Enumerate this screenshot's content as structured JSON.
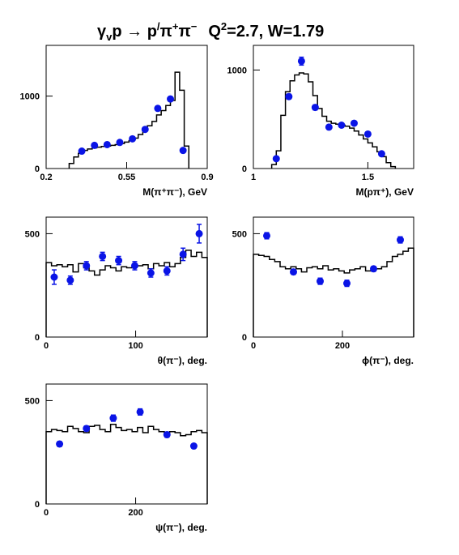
{
  "title_parts": {
    "gamma": "γ",
    "v_sub": "v",
    "reaction": "p → p",
    "prime": "/",
    "pi1": "π",
    "plus": "+",
    "pi2": "π",
    "minus": "−",
    "q": "Q",
    "q_exp": "2",
    "rest": "=2.7, W=1.79"
  },
  "colors": {
    "data_points": "#0a14e6",
    "histogram": "#000000"
  },
  "chart_data": [
    {
      "type": "scatter",
      "xlabel": "M(π⁺π⁻), GeV",
      "xlim": [
        0.2,
        0.9
      ],
      "ylim": [
        0,
        1700
      ],
      "xticks": [
        "0.2",
        "0.55",
        "0.9"
      ],
      "xtick_values": [
        0.2,
        0.55,
        0.9
      ],
      "yticks": [
        "0",
        "1000"
      ],
      "ytick_values": [
        0,
        1000
      ],
      "points": [
        {
          "x": 0.355,
          "y": 240,
          "err": 20
        },
        {
          "x": 0.41,
          "y": 320,
          "err": 20
        },
        {
          "x": 0.465,
          "y": 330,
          "err": 20
        },
        {
          "x": 0.52,
          "y": 360,
          "err": 20
        },
        {
          "x": 0.575,
          "y": 410,
          "err": 20
        },
        {
          "x": 0.63,
          "y": 540,
          "err": 25
        },
        {
          "x": 0.685,
          "y": 830,
          "err": 30
        },
        {
          "x": 0.74,
          "y": 960,
          "err": 30
        },
        {
          "x": 0.795,
          "y": 250,
          "err": 20
        }
      ],
      "histogram": {
        "edges": [
          0.3,
          0.32,
          0.34,
          0.36,
          0.38,
          0.4,
          0.42,
          0.44,
          0.46,
          0.48,
          0.5,
          0.52,
          0.54,
          0.56,
          0.58,
          0.6,
          0.62,
          0.64,
          0.66,
          0.68,
          0.7,
          0.72,
          0.74,
          0.76,
          0.78,
          0.8,
          0.82
        ],
        "values": [
          70,
          160,
          210,
          250,
          270,
          285,
          295,
          305,
          310,
          320,
          330,
          345,
          365,
          385,
          420,
          470,
          530,
          590,
          650,
          740,
          800,
          870,
          940,
          1330,
          1080,
          310
        ]
      }
    },
    {
      "type": "scatter",
      "xlabel": "M(pπ⁺), GeV",
      "xlim": [
        1.0,
        1.7
      ],
      "ylim": [
        0,
        1250
      ],
      "xticks": [
        "1",
        "1.5"
      ],
      "xtick_values": [
        1.0,
        1.5
      ],
      "yticks": [
        "0",
        "1000"
      ],
      "ytick_values": [
        0,
        1000
      ],
      "points": [
        {
          "x": 1.1,
          "y": 100,
          "err": 15
        },
        {
          "x": 1.155,
          "y": 730,
          "err": 25
        },
        {
          "x": 1.21,
          "y": 1090,
          "err": 40
        },
        {
          "x": 1.27,
          "y": 620,
          "err": 25
        },
        {
          "x": 1.33,
          "y": 420,
          "err": 20
        },
        {
          "x": 1.385,
          "y": 440,
          "err": 20
        },
        {
          "x": 1.44,
          "y": 460,
          "err": 20
        },
        {
          "x": 1.5,
          "y": 350,
          "err": 20
        },
        {
          "x": 1.56,
          "y": 150,
          "err": 15
        }
      ],
      "histogram": {
        "edges": [
          1.08,
          1.1,
          1.12,
          1.14,
          1.16,
          1.18,
          1.2,
          1.22,
          1.24,
          1.26,
          1.28,
          1.3,
          1.32,
          1.34,
          1.36,
          1.38,
          1.4,
          1.42,
          1.44,
          1.46,
          1.48,
          1.5,
          1.52,
          1.54,
          1.56,
          1.58,
          1.6,
          1.62
        ],
        "values": [
          40,
          180,
          540,
          780,
          890,
          950,
          970,
          960,
          880,
          740,
          610,
          530,
          480,
          460,
          450,
          440,
          430,
          410,
          380,
          340,
          300,
          260,
          220,
          170,
          120,
          60,
          20
        ]
      }
    },
    {
      "type": "scatter",
      "xlabel": "θ(π⁻), deg.",
      "xlim": [
        0,
        180
      ],
      "ylim": [
        0,
        580
      ],
      "xticks": [
        "0",
        "100"
      ],
      "xtick_values": [
        0,
        100
      ],
      "yticks": [
        "0",
        "500"
      ],
      "ytick_values": [
        0,
        500
      ],
      "points": [
        {
          "x": 9,
          "y": 290,
          "err": 35
        },
        {
          "x": 27,
          "y": 275,
          "err": 20
        },
        {
          "x": 45,
          "y": 345,
          "err": 20
        },
        {
          "x": 63,
          "y": 390,
          "err": 20
        },
        {
          "x": 81,
          "y": 370,
          "err": 20
        },
        {
          "x": 99,
          "y": 345,
          "err": 20
        },
        {
          "x": 117,
          "y": 310,
          "err": 20
        },
        {
          "x": 135,
          "y": 320,
          "err": 20
        },
        {
          "x": 153,
          "y": 400,
          "err": 30
        },
        {
          "x": 171,
          "y": 500,
          "err": 45
        }
      ],
      "histogram": {
        "edges": [
          0,
          6,
          12,
          18,
          24,
          30,
          36,
          42,
          48,
          54,
          60,
          66,
          72,
          78,
          84,
          90,
          96,
          102,
          108,
          114,
          120,
          126,
          132,
          138,
          144,
          150,
          156,
          162,
          168,
          174,
          180
        ],
        "values": [
          360,
          345,
          350,
          340,
          350,
          315,
          355,
          335,
          320,
          300,
          325,
          345,
          335,
          320,
          340,
          335,
          340,
          345,
          350,
          330,
          355,
          345,
          360,
          340,
          355,
          385,
          420,
          390,
          410,
          385
        ]
      }
    },
    {
      "type": "scatter",
      "xlabel": "ϕ(π⁻), deg.",
      "xlim": [
        0,
        360
      ],
      "ylim": [
        0,
        580
      ],
      "xticks": [
        "0",
        "200"
      ],
      "xtick_values": [
        0,
        200
      ],
      "yticks": [
        "0",
        "500"
      ],
      "ytick_values": [
        0,
        500
      ],
      "points": [
        {
          "x": 30,
          "y": 490,
          "err": 15
        },
        {
          "x": 90,
          "y": 315,
          "err": 12
        },
        {
          "x": 150,
          "y": 270,
          "err": 15
        },
        {
          "x": 210,
          "y": 260,
          "err": 15
        },
        {
          "x": 270,
          "y": 330,
          "err": 12
        },
        {
          "x": 330,
          "y": 470,
          "err": 15
        }
      ],
      "histogram": {
        "edges": [
          0,
          12,
          24,
          36,
          48,
          60,
          72,
          84,
          96,
          108,
          120,
          132,
          144,
          156,
          168,
          180,
          192,
          204,
          216,
          228,
          240,
          252,
          264,
          276,
          288,
          300,
          312,
          324,
          336,
          348,
          360
        ],
        "values": [
          400,
          395,
          390,
          375,
          365,
          340,
          330,
          340,
          330,
          315,
          335,
          340,
          330,
          345,
          325,
          330,
          320,
          310,
          325,
          330,
          340,
          320,
          335,
          330,
          340,
          365,
          390,
          400,
          415,
          430
        ]
      }
    },
    {
      "type": "scatter",
      "xlabel": "ψ(π⁻), deg.",
      "xlim": [
        0,
        360
      ],
      "ylim": [
        0,
        580
      ],
      "xticks": [
        "0",
        "200"
      ],
      "xtick_values": [
        0,
        200
      ],
      "yticks": [
        "0",
        "500"
      ],
      "ytick_values": [
        0,
        500
      ],
      "points": [
        {
          "x": 30,
          "y": 290,
          "err": 12
        },
        {
          "x": 90,
          "y": 365,
          "err": 12
        },
        {
          "x": 150,
          "y": 415,
          "err": 15
        },
        {
          "x": 210,
          "y": 445,
          "err": 15
        },
        {
          "x": 270,
          "y": 335,
          "err": 12
        },
        {
          "x": 330,
          "y": 280,
          "err": 10
        }
      ],
      "histogram": {
        "edges": [
          0,
          12,
          24,
          36,
          48,
          60,
          72,
          84,
          96,
          108,
          120,
          132,
          144,
          156,
          168,
          180,
          192,
          204,
          216,
          228,
          240,
          252,
          264,
          276,
          288,
          300,
          312,
          324,
          336,
          348,
          360
        ],
        "values": [
          350,
          360,
          355,
          350,
          375,
          365,
          350,
          345,
          375,
          380,
          360,
          350,
          385,
          370,
          355,
          360,
          350,
          370,
          345,
          375,
          360,
          350,
          335,
          350,
          345,
          330,
          335,
          350,
          355,
          345
        ]
      }
    }
  ]
}
